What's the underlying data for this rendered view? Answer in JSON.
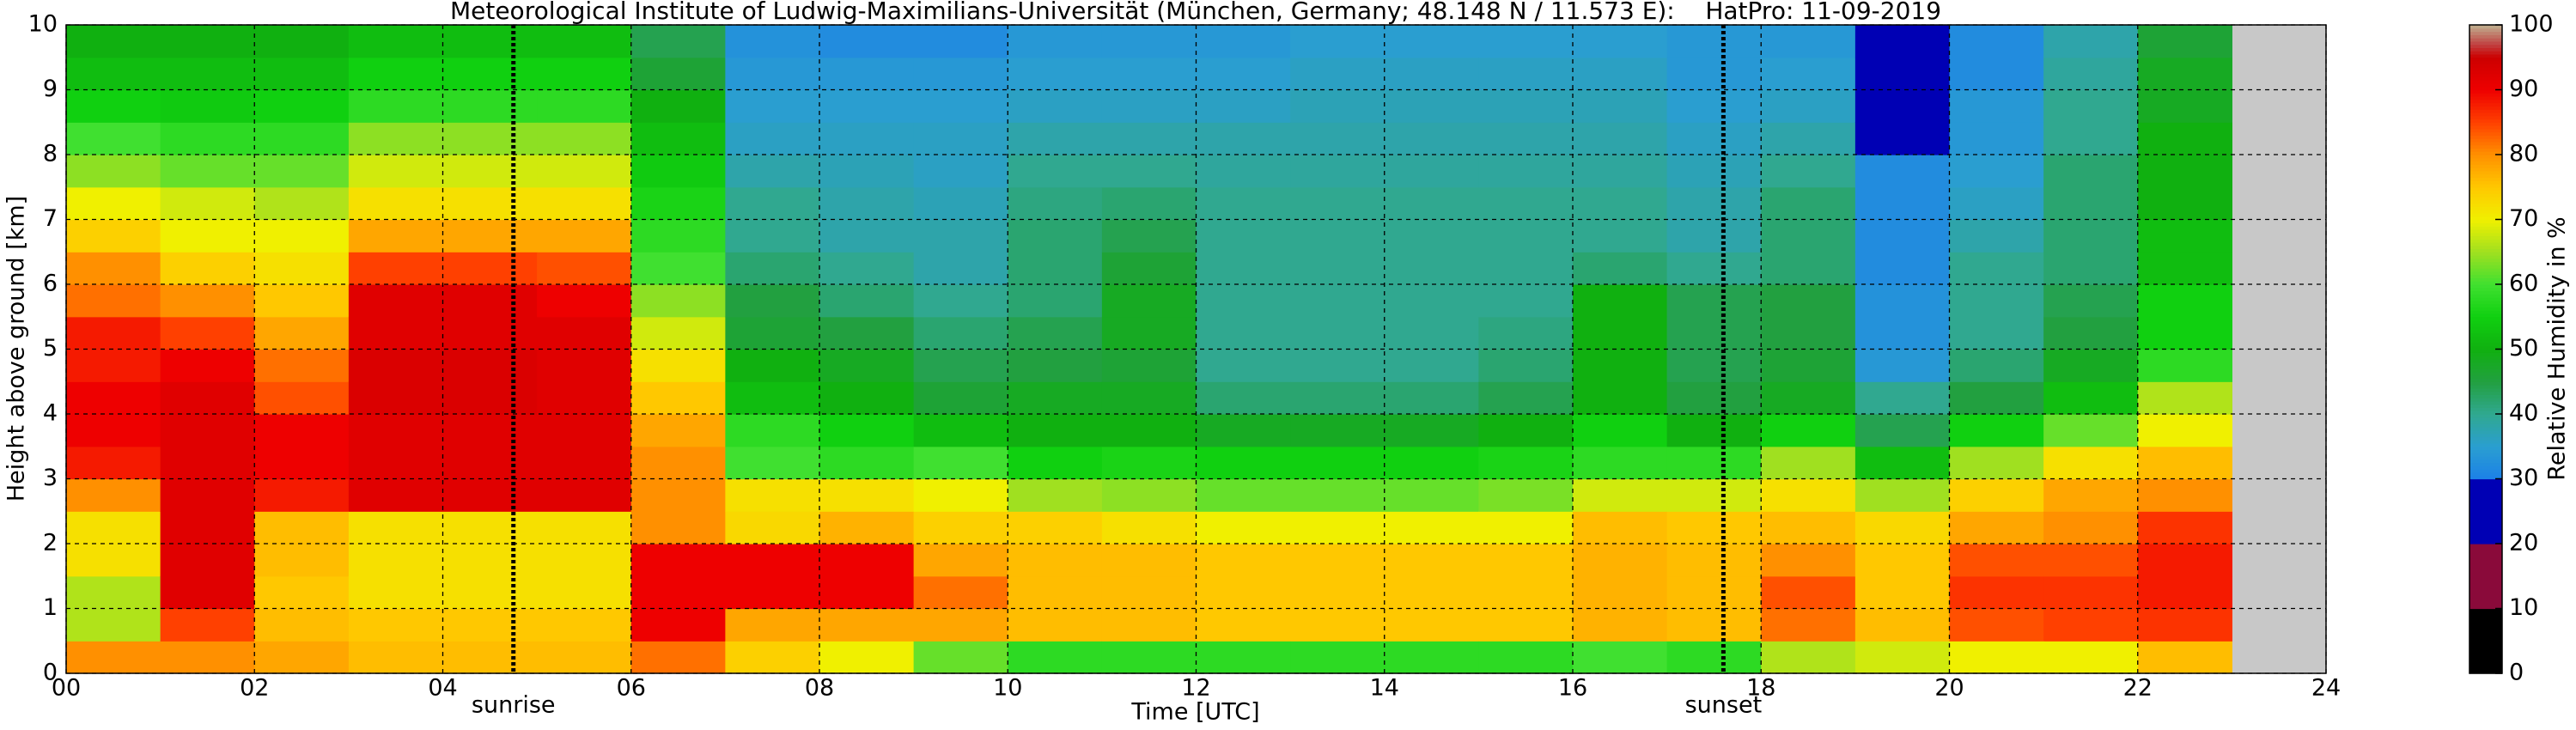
{
  "chart_data": {
    "type": "heatmap",
    "title": "Meteorological Institute of Ludwig-Maximilians-Universität (München, Germany; 48.148 N / 11.573 E):    HatPro: 11-09-2019",
    "xlabel": "Time [UTC]",
    "ylabel": "Height above ground [km]",
    "colorbar_label": "Relative Humidity in %",
    "xlim": [
      0,
      24
    ],
    "xticks": [
      {
        "value": 0,
        "label": "00"
      },
      {
        "value": 2,
        "label": "02"
      },
      {
        "value": 4,
        "label": "04"
      },
      {
        "value": 6,
        "label": "06"
      },
      {
        "value": 8,
        "label": "08"
      },
      {
        "value": 10,
        "label": "10"
      },
      {
        "value": 12,
        "label": "12"
      },
      {
        "value": 14,
        "label": "14"
      },
      {
        "value": 16,
        "label": "16"
      },
      {
        "value": 18,
        "label": "18"
      },
      {
        "value": 20,
        "label": "20"
      },
      {
        "value": 22,
        "label": "22"
      },
      {
        "value": 24,
        "label": "24"
      }
    ],
    "ylim": [
      0,
      10
    ],
    "yticks": [
      0,
      1,
      2,
      3,
      4,
      5,
      6,
      7,
      8,
      9,
      10
    ],
    "clim": [
      0,
      100
    ],
    "cticks": [
      0,
      10,
      20,
      30,
      40,
      50,
      60,
      70,
      80,
      90,
      100
    ],
    "grid": true,
    "no_data_color": "#c8c8c8",
    "colorscale": [
      [
        0,
        "#000000"
      ],
      [
        10,
        "#000000"
      ],
      [
        10,
        "#8a0a3a"
      ],
      [
        20,
        "#8a0a3a"
      ],
      [
        20,
        "#0000b4"
      ],
      [
        30,
        "#0000b4"
      ],
      [
        30,
        "#1c80e8"
      ],
      [
        35,
        "#2a9ed0"
      ],
      [
        40,
        "#30a890"
      ],
      [
        45,
        "#22a040"
      ],
      [
        50,
        "#10b010"
      ],
      [
        55,
        "#10d010"
      ],
      [
        60,
        "#40e030"
      ],
      [
        65,
        "#a0e020"
      ],
      [
        70,
        "#f0f000"
      ],
      [
        75,
        "#ffc800"
      ],
      [
        80,
        "#ff9000"
      ],
      [
        85,
        "#ff4000"
      ],
      [
        90,
        "#ee0000"
      ],
      [
        95,
        "#cc0000"
      ],
      [
        97,
        "#c04040"
      ],
      [
        100,
        "#c0b090"
      ]
    ],
    "markers": [
      {
        "label": "sunrise",
        "x": 4.75
      },
      {
        "label": "sunset",
        "x": 17.6
      }
    ],
    "xbins": [
      0,
      1,
      2,
      3,
      4,
      5,
      6,
      7,
      8,
      9,
      10,
      11,
      12,
      13,
      14,
      15,
      16,
      17,
      18,
      19,
      20,
      21,
      22,
      23
    ],
    "ybins": [
      0,
      0.5,
      1,
      1.5,
      2,
      2.5,
      3,
      3.5,
      4,
      4.5,
      5,
      5.5,
      6,
      6.5,
      7,
      7.5,
      8,
      8.5,
      9,
      9.5,
      10
    ],
    "z": [
      [
        80,
        66,
        66,
        72,
        72,
        80,
        88,
        90,
        90,
        88,
        88,
        82,
        80,
        74,
        70,
        64,
        60,
        55,
        52,
        50
      ],
      [
        80,
        85,
        92,
        92,
        92,
        92,
        92,
        92,
        92,
        90,
        85,
        80,
        74,
        70,
        68,
        62,
        58,
        54,
        52,
        50
      ],
      [
        78,
        76,
        75,
        76,
        76,
        88,
        90,
        90,
        84,
        82,
        78,
        75,
        72,
        70,
        66,
        62,
        58,
        55,
        52,
        50
      ],
      [
        76,
        75,
        72,
        72,
        72,
        92,
        92,
        92,
        93,
        93,
        92,
        92,
        85,
        78,
        72,
        68,
        64,
        58,
        55,
        52
      ],
      [
        76,
        75,
        72,
        72,
        72,
        92,
        92,
        92,
        93,
        93,
        92,
        92,
        85,
        78,
        72,
        68,
        64,
        58,
        55,
        52
      ],
      [
        76,
        75,
        72,
        72,
        72,
        92,
        92,
        92,
        92,
        92,
        92,
        90,
        84,
        78,
        72,
        68,
        64,
        58,
        55,
        52
      ],
      [
        82,
        90,
        90,
        90,
        80,
        80,
        80,
        78,
        75,
        72,
        68,
        64,
        60,
        58,
        56,
        54,
        52,
        50,
        46,
        44
      ],
      [
        74,
        78,
        90,
        90,
        73,
        72,
        60,
        58,
        52,
        50,
        46,
        45,
        42,
        40,
        40,
        38,
        36,
        35,
        34,
        33
      ],
      [
        70,
        78,
        90,
        90,
        77,
        72,
        58,
        55,
        50,
        48,
        45,
        42,
        40,
        38,
        38,
        37,
        36,
        35,
        34,
        32
      ],
      [
        62,
        78,
        82,
        78,
        74,
        70,
        60,
        52,
        46,
        44,
        42,
        40,
        38,
        38,
        37,
        36,
        36,
        35,
        34,
        32
      ],
      [
        58,
        76,
        76,
        76,
        74,
        65,
        55,
        50,
        48,
        45,
        44,
        42,
        42,
        42,
        41,
        40,
        38,
        36,
        35,
        34
      ],
      [
        58,
        76,
        76,
        76,
        72,
        64,
        56,
        50,
        48,
        46,
        48,
        48,
        46,
        44,
        42,
        40,
        38,
        36,
        35,
        34
      ],
      [
        58,
        75,
        75,
        75,
        70,
        62,
        55,
        48,
        42,
        40,
        40,
        40,
        40,
        40,
        40,
        39,
        38,
        36,
        35,
        34
      ],
      [
        58,
        75,
        75,
        75,
        70,
        62,
        55,
        48,
        42,
        40,
        40,
        40,
        40,
        40,
        40,
        39,
        38,
        37,
        36,
        35
      ],
      [
        58,
        75,
        75,
        75,
        70,
        62,
        55,
        48,
        42,
        40,
        40,
        40,
        40,
        40,
        40,
        39,
        38,
        37,
        36,
        35
      ],
      [
        58,
        75,
        75,
        75,
        70,
        63,
        56,
        50,
        44,
        42,
        41,
        40,
        40,
        40,
        40,
        39,
        38,
        37,
        36,
        35
      ],
      [
        60,
        77,
        77,
        77,
        76,
        68,
        58,
        55,
        50,
        50,
        50,
        50,
        42,
        40,
        40,
        39,
        38,
        37,
        36,
        35
      ],
      [
        58,
        76,
        76,
        76,
        75,
        68,
        58,
        50,
        45,
        44,
        44,
        44,
        40,
        38,
        38,
        37,
        36,
        35,
        34,
        34
      ],
      [
        66,
        82,
        84,
        80,
        76,
        72,
        65,
        55,
        48,
        46,
        45,
        45,
        42,
        42,
        42,
        40,
        38,
        36,
        35,
        34
      ],
      [
        68,
        76,
        75,
        75,
        73,
        65,
        52,
        44,
        40,
        34,
        33,
        33,
        32,
        32,
        32,
        32,
        30,
        30,
        30,
        30
      ],
      [
        70,
        84,
        86,
        84,
        78,
        74,
        65,
        55,
        45,
        42,
        40,
        40,
        40,
        38,
        36,
        35,
        34,
        34,
        32,
        32
      ],
      [
        70,
        85,
        86,
        84,
        80,
        78,
        72,
        62,
        52,
        48,
        45,
        44,
        42,
        42,
        42,
        42,
        40,
        40,
        39,
        38
      ],
      [
        76,
        86,
        88,
        88,
        86,
        80,
        76,
        70,
        66,
        58,
        55,
        55,
        52,
        52,
        50,
        50,
        50,
        48,
        48,
        46
      ]
    ]
  }
}
